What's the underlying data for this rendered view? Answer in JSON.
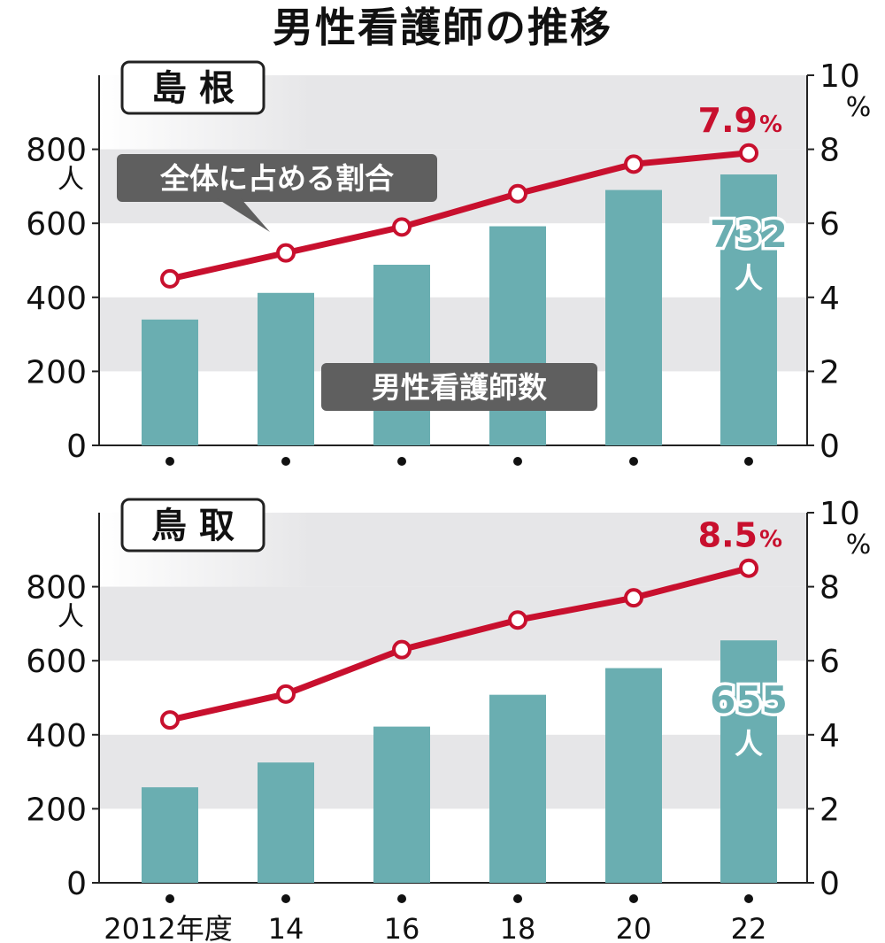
{
  "title": "男性看護師の推移",
  "chart_data": [
    {
      "type": "bar+line",
      "region": "島 根",
      "categories": [
        "2012",
        "14",
        "16",
        "18",
        "20",
        "22"
      ],
      "series": [
        {
          "values": [
            340,
            412,
            488,
            592,
            690,
            732
          ]
        },
        {
          "values": [
            4.5,
            5.2,
            5.9,
            6.8,
            7.6,
            7.9
          ]
        }
      ],
      "y_left": {
        "ticks": [
          "0",
          "200",
          "400",
          "600",
          "800"
        ],
        "unit": "人",
        "range": [
          0,
          1000
        ]
      },
      "y_right": {
        "ticks": [
          "0",
          "2",
          "4",
          "6",
          "8",
          "10"
        ],
        "unit": "%",
        "range": [
          0,
          10
        ]
      },
      "callout_line": "全体に占める割合",
      "callout_bar": "男性看護師数",
      "last_bar_label": "732",
      "last_bar_unit": "人",
      "last_line_value": "7.9",
      "last_line_unit": "%"
    },
    {
      "type": "bar+line",
      "region": "鳥 取",
      "categories": [
        "2012",
        "14",
        "16",
        "18",
        "20",
        "22"
      ],
      "series": [
        {
          "values": [
            258,
            325,
            422,
            508,
            580,
            655
          ]
        },
        {
          "values": [
            4.4,
            5.1,
            6.3,
            7.1,
            7.7,
            8.5
          ]
        }
      ],
      "y_left": {
        "ticks": [
          "0",
          "200",
          "400",
          "600",
          "800"
        ],
        "unit": "人",
        "range": [
          0,
          1000
        ]
      },
      "y_right": {
        "ticks": [
          "0",
          "2",
          "4",
          "6",
          "8",
          "10"
        ],
        "unit": "%",
        "range": [
          0,
          10
        ]
      },
      "last_bar_label": "655",
      "last_bar_unit": "人",
      "last_line_value": "8.5",
      "last_line_unit": "%"
    }
  ],
  "x_labels": [
    "2012年度",
    "14",
    "16",
    "18",
    "20",
    "22"
  ],
  "colors": {
    "bar": "#6aaeb1",
    "line": "#c8102e",
    "band": "#e6e6e8",
    "callout_bg": "#5f5f5f"
  }
}
